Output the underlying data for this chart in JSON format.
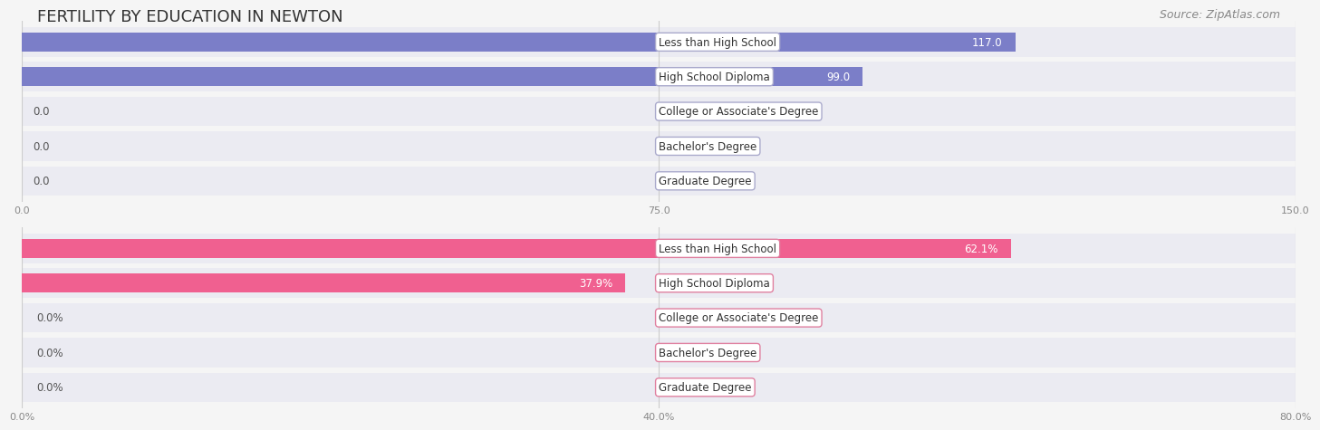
{
  "title": "FERTILITY BY EDUCATION IN NEWTON",
  "source": "Source: ZipAtlas.com",
  "top_chart": {
    "categories": [
      "Less than High School",
      "High School Diploma",
      "College or Associate's Degree",
      "Bachelor's Degree",
      "Graduate Degree"
    ],
    "values": [
      117.0,
      99.0,
      0.0,
      0.0,
      0.0
    ],
    "bar_color": "#7b7ec8",
    "label_color_inside": "#ffffff",
    "label_color_outside": "#555555",
    "xlim": [
      0,
      150.0
    ],
    "xticks": [
      0.0,
      75.0,
      150.0
    ],
    "xlabel": ""
  },
  "bottom_chart": {
    "categories": [
      "Less than High School",
      "High School Diploma",
      "College or Associate's Degree",
      "Bachelor's Degree",
      "Graduate Degree"
    ],
    "values": [
      62.1,
      37.9,
      0.0,
      0.0,
      0.0
    ],
    "bar_color": "#f06090",
    "label_color_inside": "#ffffff",
    "label_color_outside": "#555555",
    "xlim": [
      0,
      80.0
    ],
    "xticks": [
      0.0,
      40.0,
      80.0
    ],
    "xtick_labels": [
      "0.0%",
      "40.0%",
      "80.0%"
    ],
    "xlabel": ""
  },
  "bg_color": "#f5f5f5",
  "bar_bg_color": "#e8e8f0",
  "label_bg_color": "#ffffff",
  "label_border_color_top": "#aaaacc",
  "label_border_color_bottom": "#e080a0",
  "title_fontsize": 13,
  "source_fontsize": 9,
  "label_fontsize": 8.5,
  "value_fontsize": 8.5
}
